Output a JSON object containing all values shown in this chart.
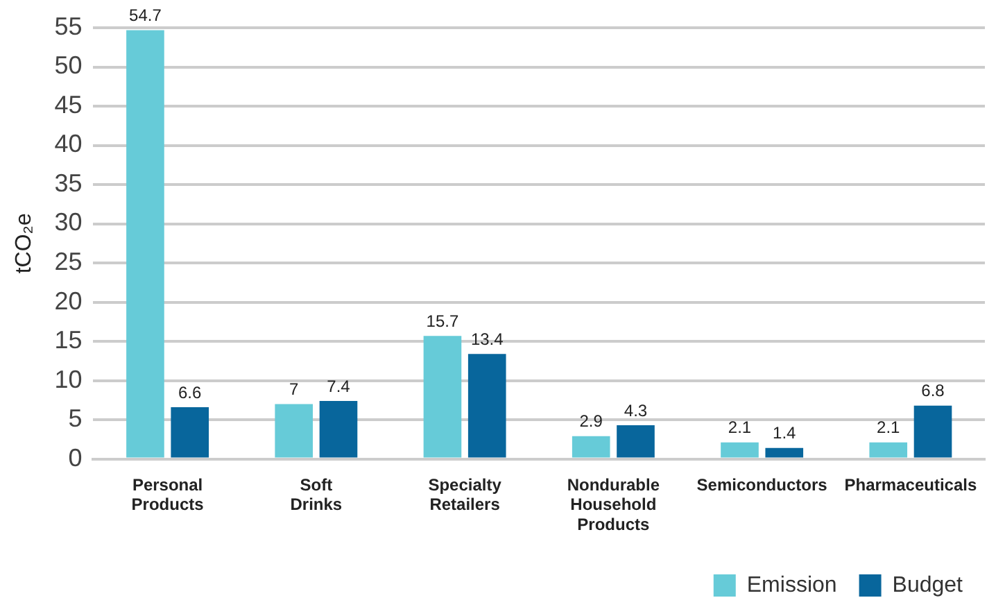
{
  "chart_data": {
    "type": "bar",
    "ylabel": "tCO₂e",
    "categories": [
      "Personal Products",
      "Soft Drinks",
      "Specialty Retailers",
      "Nondurable Household Products",
      "Semiconductors",
      "Pharmaceuticals"
    ],
    "series": [
      {
        "name": "Emission",
        "color": "#66cbd8",
        "values": [
          54.7,
          7,
          15.7,
          2.9,
          2.1,
          2.1
        ]
      },
      {
        "name": "Budget",
        "color": "#08669c",
        "values": [
          6.6,
          7.4,
          13.4,
          4.3,
          1.4,
          6.8
        ]
      }
    ],
    "ylim": [
      0,
      55
    ],
    "yticks": [
      0,
      5,
      10,
      15,
      20,
      25,
      30,
      35,
      40,
      45,
      50,
      55
    ],
    "grid": "y",
    "legend": "bottom right",
    "data_labels": true
  }
}
